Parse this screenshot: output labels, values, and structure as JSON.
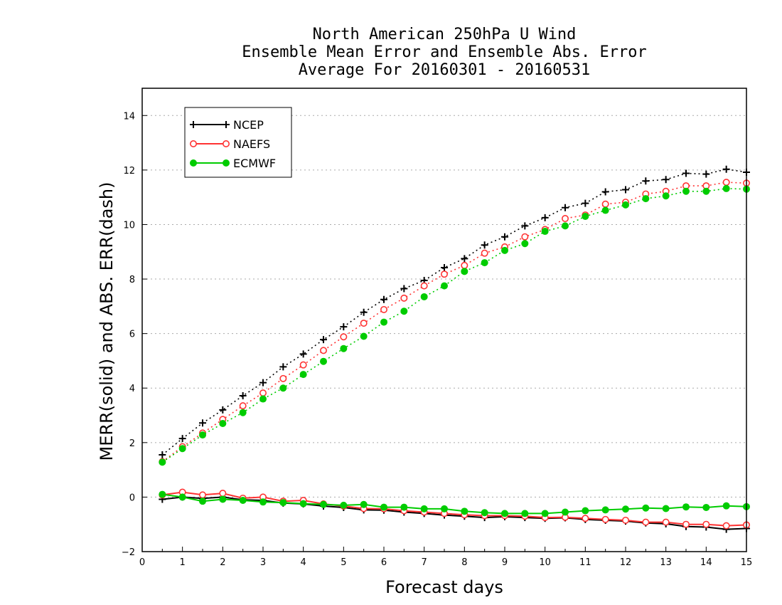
{
  "chart_data": {
    "type": "line",
    "title": [
      "North American 250hPa U Wind",
      "Ensemble Mean Error and Ensemble Abs. Error",
      "Average For 20160301 - 20160531"
    ],
    "xlabel": "Forecast days",
    "ylabel": "MERR(solid) and ABS. ERR(dash)",
    "xlim": [
      0,
      15
    ],
    "ylim": [
      -2,
      15
    ],
    "xticks": [
      "0",
      "1",
      "2",
      "3",
      "4",
      "5",
      "6",
      "7",
      "8",
      "9",
      "10",
      "11",
      "12",
      "13",
      "14",
      "15"
    ],
    "yticks": [
      "−2",
      "0",
      "2",
      "4",
      "6",
      "8",
      "10",
      "12",
      "14"
    ],
    "grid": true,
    "legend_position": "top-left",
    "x": [
      0.5,
      1,
      1.5,
      2,
      2.5,
      3,
      3.5,
      4,
      4.5,
      5,
      5.5,
      6,
      6.5,
      7,
      7.5,
      8,
      8.5,
      9,
      9.5,
      10,
      10.5,
      11,
      11.5,
      12,
      12.5,
      13,
      13.5,
      14,
      14.5,
      15
    ],
    "series": [
      {
        "name": "NCEP",
        "color": "#000000",
        "marker": "plus",
        "merr": [
          -0.08,
          0.0,
          -0.05,
          0.0,
          -0.1,
          -0.12,
          -0.22,
          -0.25,
          -0.33,
          -0.38,
          -0.47,
          -0.48,
          -0.55,
          -0.6,
          -0.66,
          -0.7,
          -0.75,
          -0.72,
          -0.75,
          -0.78,
          -0.76,
          -0.82,
          -0.85,
          -0.88,
          -0.95,
          -0.98,
          -1.08,
          -1.1,
          -1.18,
          -1.15
        ],
        "abs_err": [
          1.55,
          2.15,
          2.72,
          3.2,
          3.72,
          4.2,
          4.78,
          5.25,
          5.78,
          6.25,
          6.78,
          7.25,
          7.65,
          7.95,
          8.42,
          8.75,
          9.25,
          9.55,
          9.95,
          10.25,
          10.62,
          10.78,
          11.2,
          11.28,
          11.6,
          11.65,
          11.88,
          11.85,
          12.03,
          11.92
        ]
      },
      {
        "name": "NAEFS",
        "color": "#ff3333",
        "marker": "open-circle",
        "merr": [
          0.08,
          0.18,
          0.08,
          0.14,
          -0.04,
          0.0,
          -0.15,
          -0.12,
          -0.25,
          -0.33,
          -0.42,
          -0.43,
          -0.5,
          -0.55,
          -0.6,
          -0.65,
          -0.68,
          -0.68,
          -0.7,
          -0.75,
          -0.74,
          -0.78,
          -0.82,
          -0.85,
          -0.92,
          -0.92,
          -1.0,
          -1.0,
          -1.05,
          -1.02
        ],
        "abs_err": [
          1.3,
          1.85,
          2.35,
          2.85,
          3.35,
          3.82,
          4.35,
          4.85,
          5.38,
          5.88,
          6.38,
          6.88,
          7.3,
          7.75,
          8.18,
          8.5,
          8.95,
          9.18,
          9.55,
          9.82,
          10.22,
          10.35,
          10.75,
          10.82,
          11.12,
          11.22,
          11.42,
          11.42,
          11.55,
          11.52
        ]
      },
      {
        "name": "ECMWF",
        "color": "#00cc00",
        "marker": "filled-circle",
        "merr": [
          0.1,
          0.0,
          -0.15,
          -0.08,
          -0.12,
          -0.18,
          -0.2,
          -0.24,
          -0.27,
          -0.3,
          -0.27,
          -0.37,
          -0.37,
          -0.43,
          -0.43,
          -0.52,
          -0.57,
          -0.6,
          -0.6,
          -0.6,
          -0.55,
          -0.5,
          -0.47,
          -0.44,
          -0.4,
          -0.42,
          -0.36,
          -0.38,
          -0.32,
          -0.35
        ],
        "abs_err": [
          1.28,
          1.78,
          2.28,
          2.7,
          3.1,
          3.6,
          4.0,
          4.5,
          4.98,
          5.45,
          5.9,
          6.42,
          6.82,
          7.35,
          7.75,
          8.28,
          8.6,
          9.05,
          9.3,
          9.75,
          9.95,
          10.3,
          10.52,
          10.72,
          10.95,
          11.05,
          11.22,
          11.22,
          11.32,
          11.3
        ]
      }
    ]
  }
}
